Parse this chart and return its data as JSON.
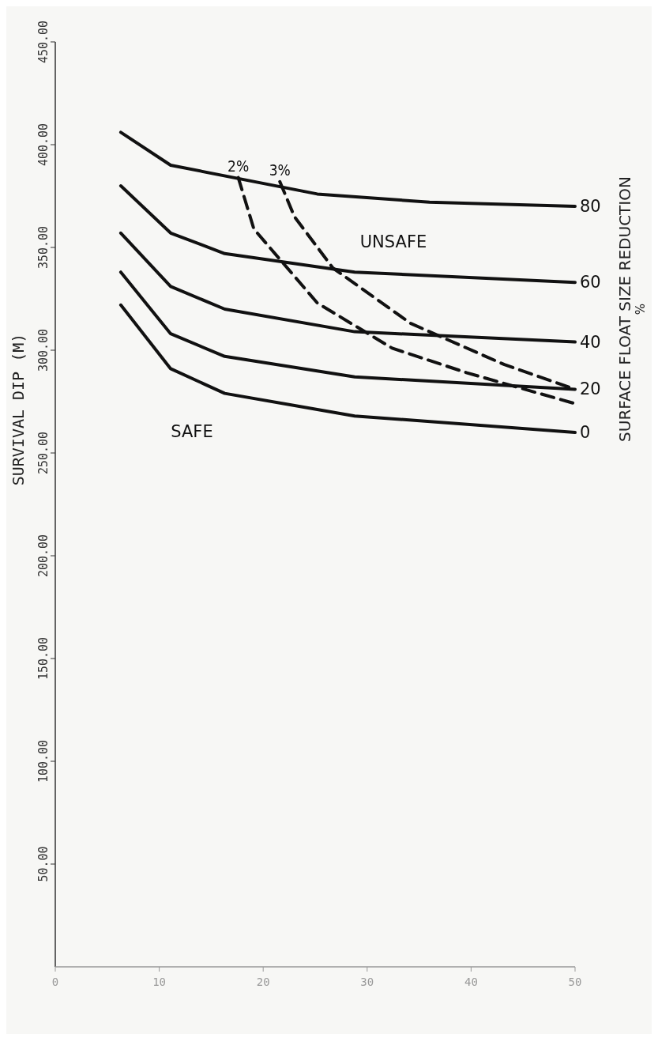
{
  "chart_data": {
    "type": "line",
    "ylabel": "SURVIVAL DIP (M)",
    "legend_title": "SURFACE FLOAT SIZE REDUCTION %",
    "xlim": [
      0,
      50
    ],
    "xticks": [
      0,
      10,
      20,
      30,
      40,
      50
    ],
    "ylim": [
      0,
      450
    ],
    "yticks": [
      {
        "value": 50,
        "label": "50.00"
      },
      {
        "value": 100,
        "label": "100.00"
      },
      {
        "value": 150,
        "label": "150.00"
      },
      {
        "value": 200,
        "label": "200.00"
      },
      {
        "value": 250,
        "label": "250.00"
      },
      {
        "value": 300,
        "label": "300.00"
      },
      {
        "value": 350,
        "label": "350.00"
      },
      {
        "value": 400,
        "label": "400.00"
      },
      {
        "value": 450,
        "label": "450.00"
      }
    ],
    "grid": false,
    "marker": "none",
    "series": [
      {
        "name": "80",
        "color": "#111111",
        "x": [
          6.3,
          11.1,
          25.2,
          36,
          50
        ],
        "values": [
          406,
          390,
          376,
          372,
          370
        ]
      },
      {
        "name": "60",
        "color": "#111111",
        "x": [
          6.3,
          11.1,
          16.3,
          28.8,
          50
        ],
        "values": [
          380,
          357,
          347,
          338,
          333
        ]
      },
      {
        "name": "40",
        "color": "#111111",
        "x": [
          6.3,
          11.1,
          16.3,
          28.8,
          50
        ],
        "values": [
          357,
          331,
          320,
          309,
          304
        ]
      },
      {
        "name": "20",
        "color": "#111111",
        "x": [
          6.3,
          11.1,
          16.3,
          28.8,
          50
        ],
        "values": [
          338,
          308,
          297,
          287,
          281
        ]
      },
      {
        "name": "0",
        "color": "#111111",
        "x": [
          6.3,
          11.1,
          16.3,
          28.8,
          50
        ],
        "values": [
          322,
          291,
          279,
          268,
          260
        ]
      },
      {
        "name": "2%",
        "color": "#111111",
        "line_style": "dashed",
        "x": [
          17.6,
          19.1,
          25.2,
          32.4,
          39.6,
          50
        ],
        "values": [
          384,
          359,
          323,
          301,
          289,
          274
        ]
      },
      {
        "name": "3%",
        "color": "#111111",
        "line_style": "dashed",
        "x": [
          21.6,
          23,
          26.7,
          34.2,
          43.2,
          50
        ],
        "values": [
          382,
          365,
          340,
          313,
          293,
          281
        ]
      }
    ],
    "annotations": [
      "UNSAFE",
      "SAFE"
    ]
  }
}
